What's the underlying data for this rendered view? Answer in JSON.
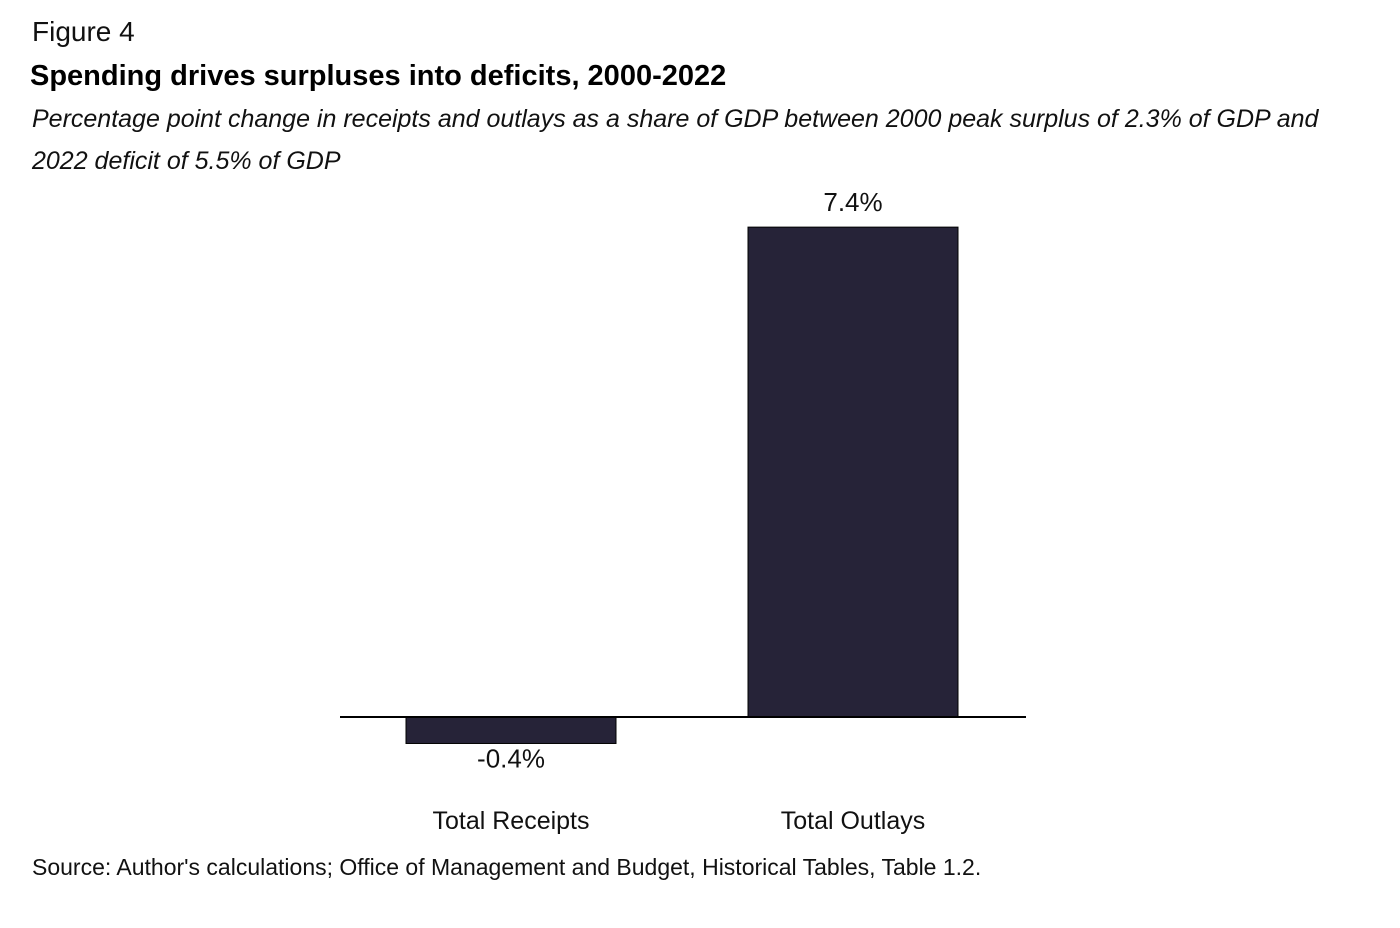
{
  "figure_label": "Figure 4",
  "chart_data": {
    "type": "bar",
    "title": "Spending drives surpluses into deficits, 2000-2022",
    "subtitle": "Percentage point change in receipts and outlays as a share of GDP between 2000 peak surplus of 2.3% of GDP and 2022 deficit of 5.5% of GDP",
    "categories": [
      "Total Receipts",
      "Total Outlays"
    ],
    "values": [
      -0.4,
      7.4
    ],
    "data_labels": [
      "-0.4%",
      "7.4%"
    ],
    "xlabel": "",
    "ylabel": "",
    "ylim": [
      -0.4,
      7.4
    ],
    "grid": false,
    "legend": "none",
    "bar_color": "#262338",
    "axis_color": "#000000"
  },
  "source": "Source: Author's calculations; Office of Management and Budget, Historical Tables, Table 1.2."
}
